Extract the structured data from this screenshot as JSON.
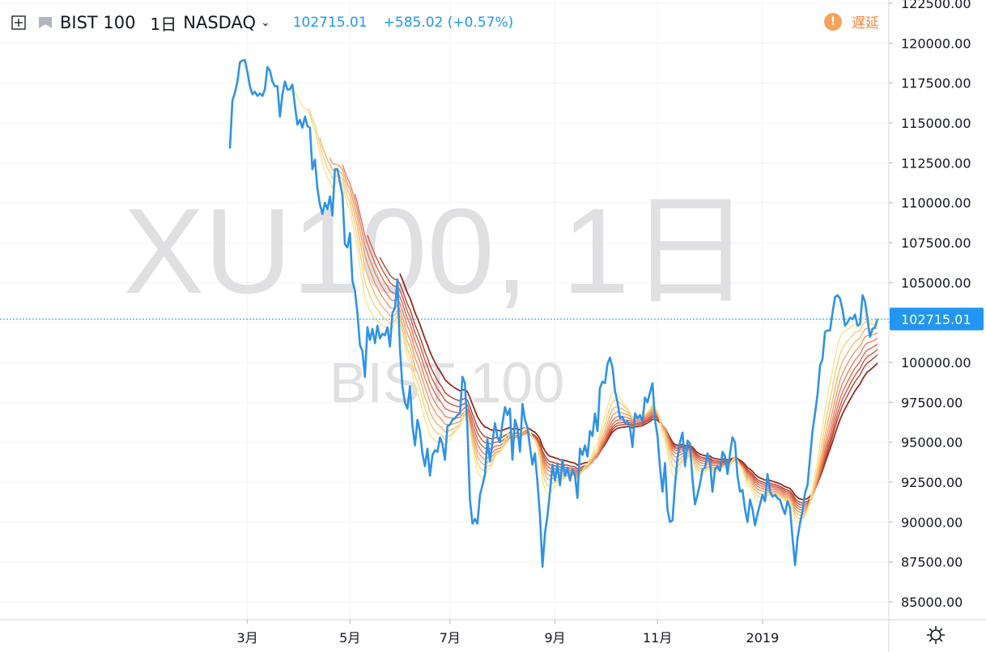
{
  "legend": {
    "symbol": "BIST 100",
    "interval": "1日",
    "exchange": "NASDAQ",
    "price": "102715.01",
    "change": "+585.02 (+0.57%)"
  },
  "status": {
    "delayed_label": "遅延"
  },
  "watermark": {
    "main": "XU100, 1日",
    "sub": "BIST 100"
  },
  "last_price_label": "102715.01",
  "colors": {
    "price_line": "#2e93e6",
    "ribbon": [
      "#f7e58a",
      "#f5cf7c",
      "#f3b571",
      "#ee9a66",
      "#e9805c",
      "#df6a4f",
      "#cf5540",
      "#b54030",
      "#962c1e"
    ],
    "axis_text": "#131722",
    "watermark": "#e0e0e3",
    "last_price_bg": "#2196f3"
  },
  "chart_data": {
    "type": "line",
    "ylim": [
      83800,
      122500
    ],
    "y_ticks": [
      85000,
      87500,
      90000,
      92500,
      95000,
      97500,
      100000,
      102500,
      105000,
      107500,
      110000,
      112500,
      115000,
      117500,
      120000,
      122500
    ],
    "y_tick_labels": [
      "85000.00",
      "87500.00",
      "90000.00",
      "92500.00",
      "95000.00",
      "97500.00",
      "100000.00",
      "102500.00",
      "105000.00",
      "107500.00",
      "110000.00",
      "112500.00",
      "115000.00",
      "117500.00",
      "120000.00",
      "122500.00"
    ],
    "x_ticks": [
      {
        "label": "3月",
        "bar": 7
      },
      {
        "label": "5月",
        "bar": 48
      },
      {
        "label": "7月",
        "bar": 88
      },
      {
        "label": "9月",
        "bar": 130
      },
      {
        "label": "11月",
        "bar": 171
      },
      {
        "label": "2019",
        "bar": 213
      }
    ],
    "last_price": 102715.01,
    "series": [
      {
        "values": [
          113400,
          116400,
          116900,
          117600,
          118800,
          118900,
          118950,
          118200,
          117300,
          116800,
          116950,
          116700,
          116850,
          116700,
          117100,
          118500,
          118300,
          117600,
          117300,
          117300,
          115400,
          116800,
          117600,
          117100,
          117100,
          117400,
          116100,
          114900,
          115200,
          114700,
          115400,
          114800,
          114700,
          112100,
          112700,
          110900,
          109900,
          109300,
          110000,
          109600,
          110400,
          109200,
          112100,
          112100,
          111300,
          110500,
          107400,
          107200,
          108100,
          105100,
          104500,
          103100,
          101100,
          100700,
          99100,
          102200,
          101400,
          102100,
          101200,
          102300,
          101500,
          101800,
          101700,
          102200,
          101000,
          103100,
          103400,
          105200,
          100900,
          98500,
          97500,
          97100,
          98500,
          96000,
          94800,
          96400,
          95700,
          94300,
          93500,
          94600,
          92900,
          94200,
          94500,
          94400,
          95300,
          94900,
          93900,
          96000,
          96100,
          96400,
          96500,
          96700,
          96800,
          99100,
          98700,
          95900,
          91400,
          89900,
          90200,
          89900,
          91700,
          92300,
          93000,
          95200,
          93800,
          95000,
          96200,
          95300,
          95000,
          96200,
          97200,
          96700,
          97100,
          93900,
          96400,
          95900,
          94400,
          97400,
          96400,
          95900,
          94700,
          93600,
          94300,
          92500,
          90400,
          87200,
          89300,
          90400,
          91900,
          93600,
          92600,
          93600,
          92300,
          93900,
          92900,
          93400,
          92600,
          93300,
          92900,
          91500,
          94600,
          94200,
          94800,
          94100,
          95700,
          95400,
          96800,
          95700,
          98400,
          98800,
          98700,
          99900,
          100300,
          99700,
          98200,
          97500,
          96500,
          96600,
          96200,
          96300,
          95900,
          94700,
          96800,
          96500,
          96700,
          96300,
          97800,
          97500,
          98100,
          98700,
          96400,
          95400,
          93400,
          91900,
          93700,
          90800,
          90000,
          90100,
          92300,
          94000,
          95000,
          95600,
          93500,
          95100,
          94900,
          92700,
          91100,
          91700,
          92400,
          93300,
          93400,
          94300,
          93700,
          91900,
          93300,
          93500,
          93200,
          94400,
          94100,
          93000,
          94300,
          95300,
          95000,
          92900,
          91900,
          92000,
          90800,
          90000,
          91400,
          90800,
          89800,
          90500,
          91100,
          91700,
          91300,
          93000,
          91900,
          91600,
          91700,
          91500,
          91400,
          90900,
          90500,
          91300,
          90900,
          89000,
          87300,
          89000,
          89900,
          90700,
          91800,
          92300,
          94000,
          95700,
          96800,
          98000,
          99800,
          100200,
          101900,
          102000,
          102000,
          103100,
          104100,
          104200,
          104000,
          103300,
          102300,
          102500,
          102800,
          102700,
          103000,
          102300,
          102400,
          104200,
          103800,
          102700,
          101600,
          102100,
          102200,
          102715
        ]
      }
    ]
  }
}
